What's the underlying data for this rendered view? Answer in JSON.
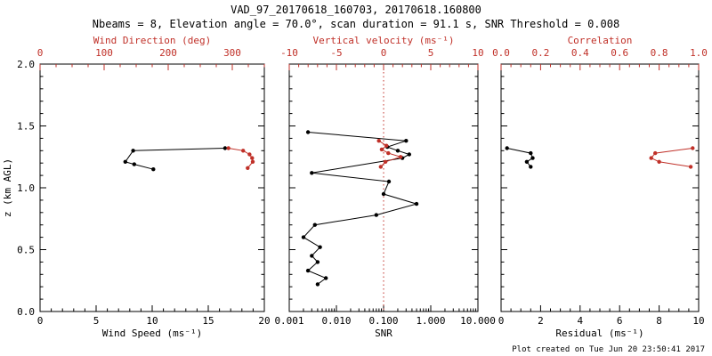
{
  "title": "VAD_97_20170618_160703, 20170618.160800",
  "subtitle": "Nbeams = 8, Elevation angle = 70.0°, scan duration = 91.1 s, SNR Threshold = 0.008",
  "footer": "Plot created on Tue Jun 20 23:50:41 2017",
  "colors": {
    "black": "#000000",
    "red": "#c03028",
    "background": "#ffffff"
  },
  "y_axis": {
    "label": "z (km AGL)",
    "lim": [
      0.0,
      2.0
    ],
    "ticks": [
      0.0,
      0.5,
      1.0,
      1.5,
      2.0
    ],
    "tick_labels": [
      "0.0",
      "0.5",
      "1.0",
      "1.5",
      "2.0"
    ],
    "minor_step": 0.1
  },
  "chart_data": [
    {
      "type": "line",
      "panel": "wind",
      "bottom_axis": {
        "label": "Wind Speed (ms⁻¹)",
        "color": "black",
        "lim": [
          0,
          20
        ],
        "ticks": [
          0,
          5,
          10,
          15,
          20
        ],
        "tick_labels": [
          "0",
          "5",
          "10",
          "15",
          "20"
        ],
        "minor_step": 1
      },
      "top_axis": {
        "label": "Wind Direction (deg)",
        "color": "red",
        "lim": [
          0,
          350
        ],
        "ticks": [
          0,
          100,
          200,
          300
        ],
        "tick_labels": [
          "0",
          "100",
          "200",
          "300"
        ],
        "minor_step": 25
      },
      "series": [
        {
          "name": "wind-speed",
          "axis": "bottom",
          "color": "black",
          "points": [
            [
              16.5,
              1.32
            ],
            [
              8.3,
              1.3
            ],
            [
              7.6,
              1.21
            ],
            [
              8.4,
              1.19
            ],
            [
              10.1,
              1.15
            ]
          ]
        },
        {
          "name": "wind-direction",
          "axis": "top",
          "color": "red",
          "points": [
            [
              294,
              1.32
            ],
            [
              317,
              1.3
            ],
            [
              327,
              1.27
            ],
            [
              331,
              1.24
            ],
            [
              332,
              1.21
            ],
            [
              324,
              1.16
            ]
          ]
        }
      ]
    },
    {
      "type": "line",
      "panel": "snr",
      "bottom_axis": {
        "label": "SNR",
        "color": "black",
        "scale": "log",
        "lim": [
          0.001,
          10
        ],
        "ticks": [
          0.001,
          0.01,
          0.1,
          1,
          10
        ],
        "tick_labels": [
          "0.001",
          "0.010",
          "0.100",
          "1.000",
          "10.000"
        ]
      },
      "top_axis": {
        "label": "Vertical velocity (ms⁻¹)",
        "color": "red",
        "lim": [
          -10,
          10
        ],
        "ticks": [
          -10,
          -5,
          0,
          5,
          10
        ],
        "tick_labels": [
          "-10",
          "-5",
          "0",
          "5",
          "10"
        ],
        "minor_step": 1
      },
      "ref_line": {
        "axis": "top",
        "value": 0,
        "color": "red",
        "style": "dotted"
      },
      "series": [
        {
          "name": "snr",
          "axis": "bottom",
          "color": "black",
          "points": [
            [
              0.0025,
              1.45
            ],
            [
              0.3,
              1.38
            ],
            [
              0.12,
              1.33
            ],
            [
              0.2,
              1.3
            ],
            [
              0.35,
              1.27
            ],
            [
              0.25,
              1.24
            ],
            [
              0.003,
              1.12
            ],
            [
              0.13,
              1.05
            ],
            [
              0.1,
              0.95
            ],
            [
              0.5,
              0.87
            ],
            [
              0.07,
              0.78
            ],
            [
              0.0035,
              0.7
            ],
            [
              0.002,
              0.6
            ],
            [
              0.0045,
              0.52
            ],
            [
              0.003,
              0.45
            ],
            [
              0.004,
              0.4
            ],
            [
              0.0025,
              0.33
            ],
            [
              0.006,
              0.27
            ],
            [
              0.004,
              0.22
            ]
          ]
        },
        {
          "name": "vertical-velocity",
          "axis": "top",
          "color": "red",
          "points": [
            [
              -0.5,
              1.38
            ],
            [
              0.3,
              1.34
            ],
            [
              -0.2,
              1.31
            ],
            [
              0.5,
              1.28
            ],
            [
              1.8,
              1.25
            ],
            [
              0.2,
              1.21
            ],
            [
              -0.3,
              1.17
            ]
          ]
        }
      ]
    },
    {
      "type": "line",
      "panel": "residual",
      "bottom_axis": {
        "label": "Residual (ms⁻¹)",
        "color": "black",
        "lim": [
          0,
          10
        ],
        "ticks": [
          0,
          2,
          4,
          6,
          8,
          10
        ],
        "tick_labels": [
          "0",
          "2",
          "4",
          "6",
          "8",
          "10"
        ],
        "minor_step": 0.5
      },
      "top_axis": {
        "label": "Correlation",
        "color": "red",
        "lim": [
          0.0,
          1.0
        ],
        "ticks": [
          0.0,
          0.2,
          0.4,
          0.6,
          0.8,
          1.0
        ],
        "tick_labels": [
          "0.0",
          "0.2",
          "0.4",
          "0.6",
          "0.8",
          "1.0"
        ],
        "minor_step": 0.05
      },
      "series": [
        {
          "name": "residual",
          "axis": "bottom",
          "color": "black",
          "points": [
            [
              0.3,
              1.32
            ],
            [
              1.5,
              1.28
            ],
            [
              1.6,
              1.24
            ],
            [
              1.3,
              1.21
            ],
            [
              1.5,
              1.17
            ]
          ]
        },
        {
          "name": "correlation",
          "axis": "top",
          "color": "red",
          "points": [
            [
              0.97,
              1.32
            ],
            [
              0.78,
              1.28
            ],
            [
              0.76,
              1.24
            ],
            [
              0.8,
              1.21
            ],
            [
              0.96,
              1.17
            ]
          ]
        }
      ]
    }
  ]
}
